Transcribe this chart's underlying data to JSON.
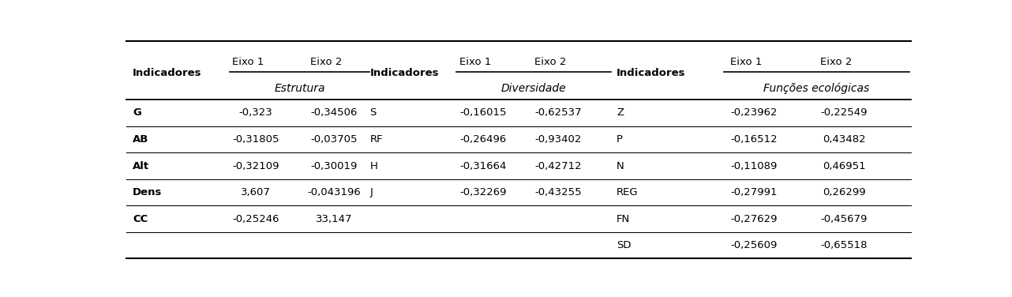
{
  "section1_rows": [
    [
      "G",
      "-0,323",
      "-0,34506"
    ],
    [
      "AB",
      "-0,31805",
      "-0,03705"
    ],
    [
      "Alt",
      "-0,32109",
      "-0,30019"
    ],
    [
      "Dens",
      "3,607",
      "-0,043196"
    ],
    [
      "CC",
      "-0,25246",
      "33,147"
    ]
  ],
  "section2_rows": [
    [
      "S",
      "-0,16015",
      "-0,62537"
    ],
    [
      "RF",
      "-0,26496",
      "-0,93402"
    ],
    [
      "H",
      "-0,31664",
      "-0,42712"
    ],
    [
      "J",
      "-0,32269",
      "-0,43255"
    ]
  ],
  "section3_rows": [
    [
      "Z",
      "-0,23962",
      "-0,22549"
    ],
    [
      "P",
      "-0,16512",
      "0,43482"
    ],
    [
      "N",
      "-0,11089",
      "0,46951"
    ],
    [
      "REG",
      "-0,27991",
      "0,26299"
    ],
    [
      "FN",
      "-0,27629",
      "-0,45679"
    ],
    [
      "SD",
      "-0,25609",
      "-0,65518"
    ]
  ],
  "bg_color": "#ffffff",
  "line_color": "#000000",
  "font_size": 9.5,
  "header": "Indicadores",
  "subheaders": [
    "Estrutura",
    "Diversidade",
    "Funções ecológicas"
  ],
  "eixo1": "Eixo 1",
  "eixo2": "Eixo 2"
}
